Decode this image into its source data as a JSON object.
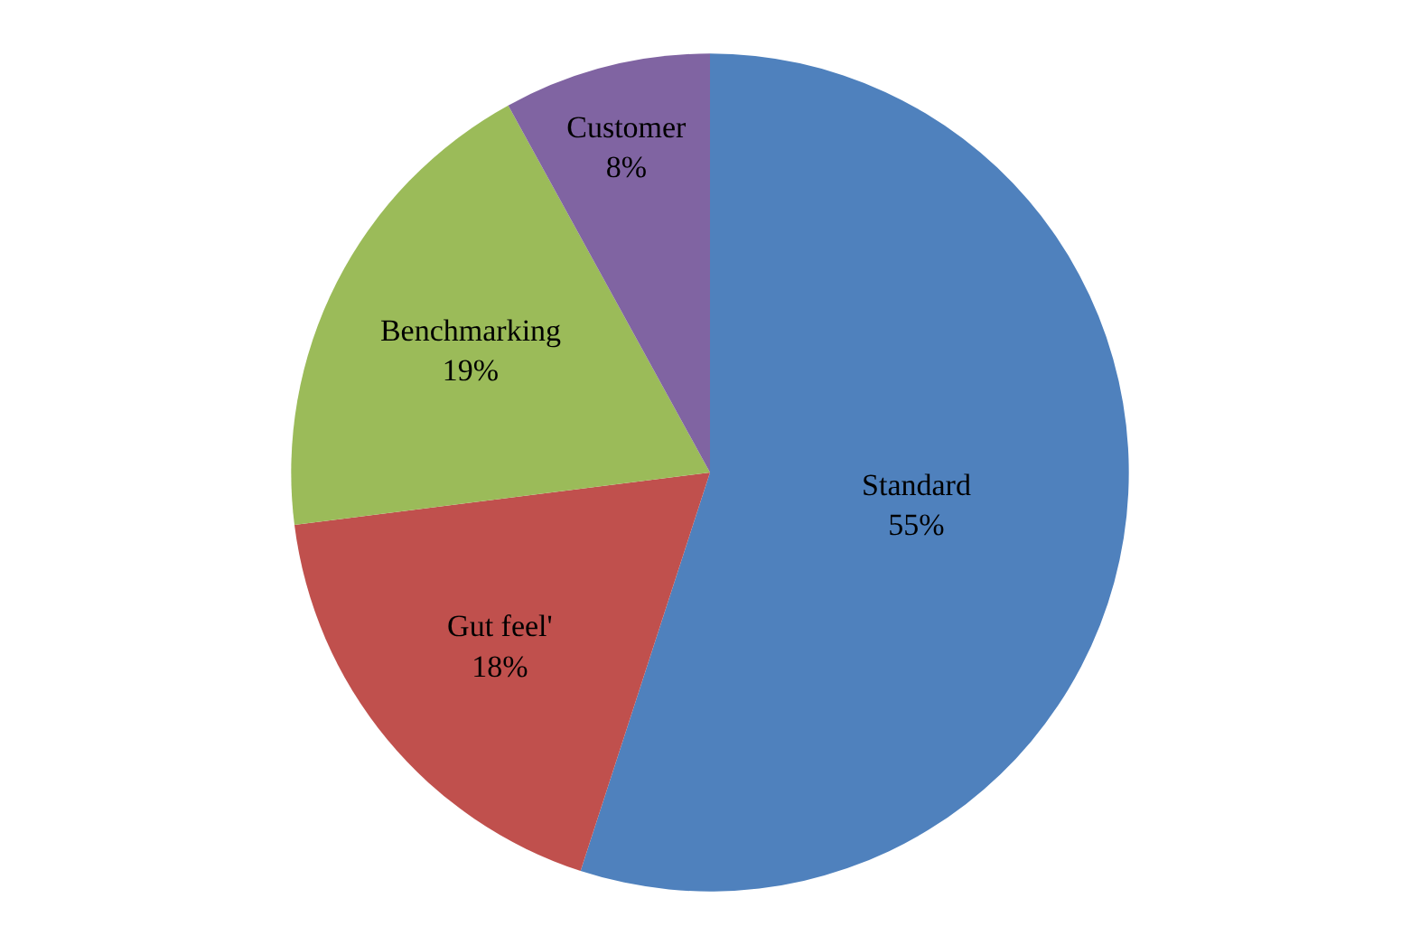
{
  "chart_data": {
    "type": "pie",
    "categories": [
      "Standard",
      "Gut feel'",
      "Benchmarking",
      "Customer"
    ],
    "values": [
      55,
      18,
      19,
      8
    ],
    "value_labels": [
      "55%",
      "18%",
      "19%",
      "8%"
    ],
    "colors": [
      "#4f81bd",
      "#c0504d",
      "#9bbb59",
      "#8064a2"
    ],
    "legend": false
  }
}
